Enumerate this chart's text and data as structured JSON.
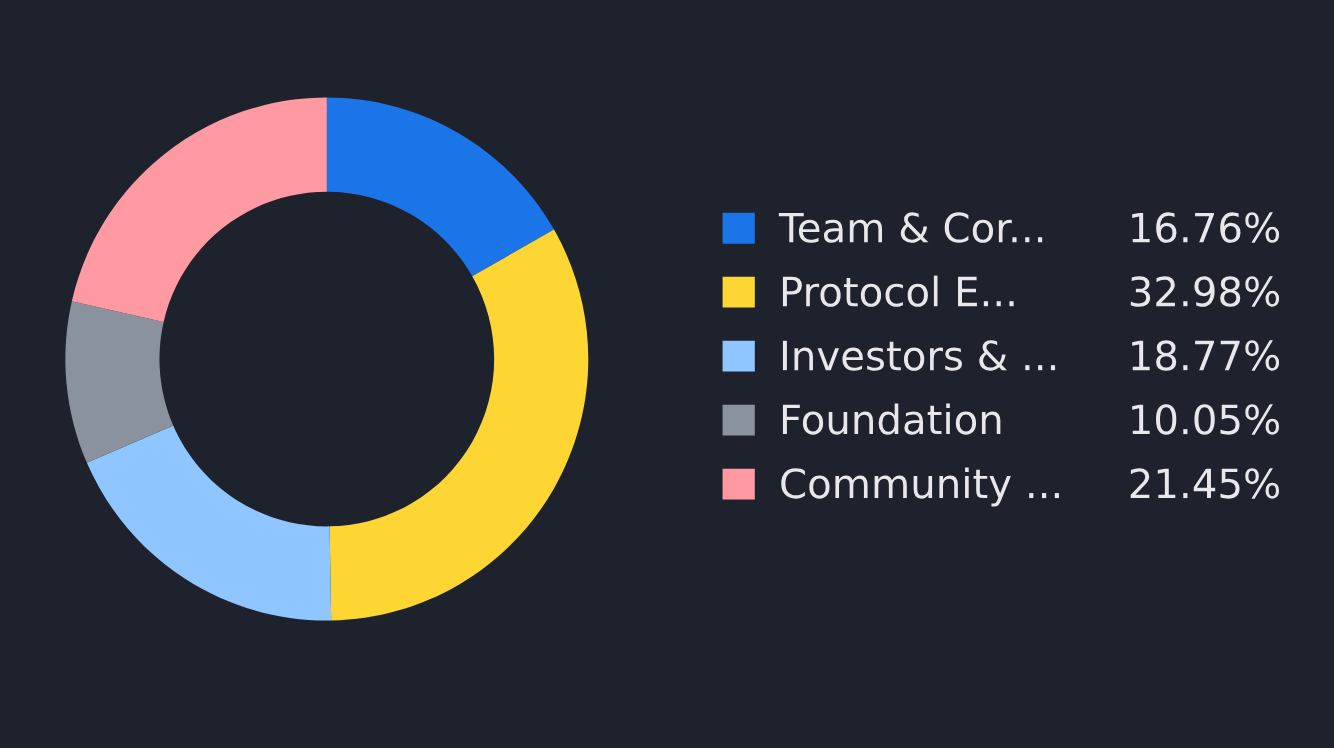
{
  "chart_data": {
    "type": "donut",
    "categories": [
      "Team & Cor...",
      "Protocol E...",
      "Investors & ...",
      "Foundation",
      "Community ..."
    ],
    "values": [
      16.76,
      32.98,
      18.77,
      10.05,
      21.45
    ],
    "value_labels": [
      "16.76%",
      "32.98%",
      "18.77%",
      "10.05%",
      "21.45%"
    ],
    "colors": [
      "#1c74e9",
      "#fdd633",
      "#8fc6ff",
      "#8a929e",
      "#ff9aa3"
    ],
    "legend": "right"
  }
}
